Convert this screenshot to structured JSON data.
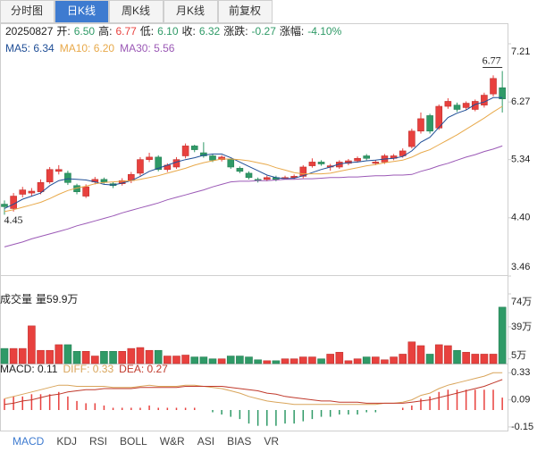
{
  "tabs": [
    "分时图",
    "日K线",
    "周K线",
    "月K线",
    "前复权"
  ],
  "active_tab": 1,
  "info": {
    "date": "20250827",
    "items": [
      {
        "label": "开:",
        "value": "6.50",
        "color": "#2f9a67"
      },
      {
        "label": "高:",
        "value": "6.77",
        "color": "#e8413e"
      },
      {
        "label": "低:",
        "value": "6.10",
        "color": "#2f9a67"
      },
      {
        "label": "收:",
        "value": "6.32",
        "color": "#2f9a67"
      },
      {
        "label": "涨跌:",
        "value": "-0.27",
        "color": "#2f9a67"
      },
      {
        "label": "涨幅:",
        "value": "-4.10%",
        "color": "#2f9a67"
      }
    ]
  },
  "chart_data": [
    {
      "type": "candlestick",
      "up_color": "#e8413e",
      "down_color": "#2f9a67",
      "open": [
        4.62,
        4.55,
        4.78,
        4.8,
        4.82,
        4.98,
        5.15,
        5.12,
        4.92,
        4.75,
        4.98,
        5.02,
        4.95,
        4.95,
        5.0,
        5.12,
        5.34,
        5.38,
        5.18,
        5.22,
        5.4,
        5.56,
        5.45,
        5.4,
        5.34,
        5.34,
        5.2,
        5.12,
        5.02,
        5.02,
        5.05,
        5.05,
        5.05,
        5.07,
        5.24,
        5.3,
        5.22,
        5.22,
        5.28,
        5.32,
        5.4,
        5.28,
        5.3,
        5.36,
        5.4,
        5.55,
        5.8,
        6.05,
        5.85,
        6.2,
        6.22,
        6.18,
        6.15,
        6.22,
        6.4,
        6.5
      ],
      "high": [
        4.68,
        4.8,
        4.9,
        4.88,
        5.02,
        5.22,
        5.25,
        5.16,
        4.95,
        4.94,
        5.06,
        5.05,
        4.98,
        5.04,
        5.14,
        5.38,
        5.45,
        5.41,
        5.28,
        5.38,
        5.6,
        5.58,
        5.62,
        5.43,
        5.41,
        5.36,
        5.23,
        5.15,
        5.05,
        5.08,
        5.08,
        5.08,
        5.1,
        5.25,
        5.36,
        5.33,
        5.27,
        5.33,
        5.35,
        5.39,
        5.43,
        5.33,
        5.43,
        5.43,
        5.52,
        5.84,
        6.1,
        6.08,
        6.23,
        6.33,
        6.26,
        6.28,
        6.31,
        6.42,
        6.7,
        6.77
      ],
      "low": [
        4.45,
        4.5,
        4.73,
        4.75,
        4.78,
        4.95,
        5.1,
        4.93,
        4.78,
        4.72,
        4.94,
        4.95,
        4.88,
        4.92,
        4.96,
        5.08,
        5.3,
        5.15,
        5.14,
        5.19,
        5.36,
        5.46,
        5.37,
        5.3,
        5.31,
        5.19,
        5.12,
        5.02,
        4.97,
        4.99,
        4.99,
        5.02,
        5.02,
        5.04,
        5.21,
        5.24,
        5.16,
        5.19,
        5.25,
        5.29,
        5.33,
        5.25,
        5.27,
        5.33,
        5.37,
        5.52,
        5.76,
        5.76,
        5.82,
        6.16,
        6.11,
        6.14,
        6.12,
        6.18,
        6.36,
        6.1
      ],
      "close": [
        4.58,
        4.75,
        4.85,
        4.83,
        4.97,
        5.18,
        5.18,
        4.97,
        4.82,
        4.9,
        5.02,
        4.98,
        4.92,
        5.0,
        5.1,
        5.34,
        5.38,
        5.18,
        5.25,
        5.34,
        5.56,
        5.5,
        5.4,
        5.33,
        5.38,
        5.22,
        5.15,
        5.05,
        5.0,
        5.05,
        5.02,
        5.05,
        5.07,
        5.22,
        5.3,
        5.27,
        5.24,
        5.3,
        5.32,
        5.36,
        5.36,
        5.3,
        5.4,
        5.4,
        5.48,
        5.8,
        6.0,
        5.8,
        6.2,
        6.28,
        6.15,
        6.25,
        6.28,
        6.38,
        6.65,
        6.32
      ],
      "series": [
        {
          "name": "MA5: 6.34",
          "color": "#1f4e96",
          "values": [
            4.55,
            4.62,
            4.7,
            4.75,
            4.8,
            4.92,
            5.0,
            5.03,
            5.02,
            5.01,
            4.98,
            4.94,
            4.93,
            4.96,
            5.0,
            5.07,
            5.15,
            5.2,
            5.25,
            5.3,
            5.34,
            5.37,
            5.41,
            5.43,
            5.43,
            5.37,
            5.3,
            5.23,
            5.16,
            5.09,
            5.05,
            5.03,
            5.04,
            5.08,
            5.13,
            5.18,
            5.22,
            5.27,
            5.29,
            5.3,
            5.32,
            5.33,
            5.35,
            5.36,
            5.39,
            5.48,
            5.62,
            5.7,
            5.86,
            6.02,
            6.09,
            6.14,
            6.23,
            6.27,
            6.34,
            6.34
          ]
        },
        {
          "name": "MA10: 6.20",
          "color": "#e8a94a",
          "values": [
            4.5,
            4.53,
            4.57,
            4.61,
            4.65,
            4.71,
            4.78,
            4.84,
            4.88,
            4.91,
            4.95,
            4.97,
            4.98,
            4.99,
            5.0,
            5.02,
            5.05,
            5.08,
            5.12,
            5.16,
            5.2,
            5.25,
            5.29,
            5.32,
            5.35,
            5.35,
            5.34,
            5.32,
            5.29,
            5.26,
            5.21,
            5.17,
            5.13,
            5.11,
            5.11,
            5.11,
            5.12,
            5.15,
            5.18,
            5.21,
            5.24,
            5.26,
            5.29,
            5.31,
            5.33,
            5.38,
            5.45,
            5.5,
            5.58,
            5.66,
            5.74,
            5.83,
            5.92,
            6.01,
            6.11,
            6.2
          ]
        },
        {
          "name": "MA30: 5.56",
          "color": "#9b59b6",
          "values": [
            3.93,
            3.97,
            4.01,
            4.06,
            4.1,
            4.14,
            4.18,
            4.22,
            4.27,
            4.31,
            4.35,
            4.39,
            4.43,
            4.48,
            4.52,
            4.56,
            4.6,
            4.64,
            4.69,
            4.73,
            4.77,
            4.81,
            4.85,
            4.9,
            4.94,
            4.98,
            4.99,
            4.99,
            5.0,
            5.0,
            5.01,
            5.02,
            5.02,
            5.03,
            5.03,
            5.04,
            5.05,
            5.05,
            5.06,
            5.06,
            5.07,
            5.08,
            5.08,
            5.09,
            5.09,
            5.1,
            5.15,
            5.19,
            5.24,
            5.28,
            5.33,
            5.38,
            5.42,
            5.47,
            5.51,
            5.56
          ]
        }
      ],
      "annotations": [
        {
          "label": "6.77",
          "value": 6.77
        },
        {
          "label": "4.45",
          "value": 4.45
        }
      ],
      "ylim": [
        3.46,
        7.21
      ],
      "yticks": [
        7.21,
        6.27,
        5.34,
        {
          "value": 4.4,
          "label": "4.40"
        },
        3.46
      ]
    },
    {
      "type": "bar",
      "title": "成交量",
      "subtitle": "量59.9万",
      "values": [
        16,
        16,
        16,
        40,
        14,
        14,
        20,
        20,
        13,
        13,
        8,
        13,
        13,
        13,
        16,
        17,
        14,
        14,
        8,
        8,
        9,
        7,
        7,
        5,
        5,
        8,
        8,
        7,
        4,
        3,
        3,
        5,
        5,
        7,
        7,
        5,
        10,
        12,
        3,
        5,
        7,
        7,
        4,
        7,
        10,
        23,
        19,
        10,
        20,
        19,
        14,
        12,
        10,
        10,
        10,
        59.9
      ],
      "ylim": [
        0,
        74
      ],
      "yticks": [
        {
          "value": 74,
          "label": "74万"
        },
        {
          "value": 39,
          "label": "39万"
        },
        {
          "value": 5,
          "label": "5万"
        }
      ]
    },
    {
      "type": "macd",
      "series": [
        {
          "name": "MACD: 0.11",
          "color": "#222222",
          "up_color": "#e8413e",
          "down_color": "#2f9a67",
          "values": [
            0.1,
            0.12,
            0.12,
            0.14,
            0.14,
            0.14,
            0.16,
            0.12,
            0.08,
            0.06,
            0.06,
            0.04,
            0.02,
            0.02,
            0.02,
            0.02,
            0.04,
            0.02,
            0.02,
            0.02,
            0.02,
            0.02,
            0,
            -0.02,
            -0.04,
            -0.06,
            -0.08,
            -0.12,
            -0.14,
            -0.14,
            -0.14,
            -0.12,
            -0.12,
            -0.1,
            -0.08,
            -0.06,
            -0.06,
            -0.04,
            -0.04,
            -0.04,
            -0.02,
            -0.02,
            0,
            0,
            0.02,
            0.04,
            0.1,
            0.12,
            0.16,
            0.18,
            0.18,
            0.18,
            0.18,
            0.18,
            0.18,
            0.11
          ]
        },
        {
          "name": "DIFF: 0.33",
          "color": "#d9a55b",
          "values": [
            0.1,
            0.12,
            0.14,
            0.16,
            0.18,
            0.2,
            0.22,
            0.22,
            0.21,
            0.21,
            0.21,
            0.21,
            0.2,
            0.2,
            0.2,
            0.21,
            0.22,
            0.21,
            0.21,
            0.21,
            0.22,
            0.22,
            0.21,
            0.2,
            0.19,
            0.17,
            0.15,
            0.12,
            0.1,
            0.08,
            0.07,
            0.06,
            0.05,
            0.05,
            0.05,
            0.05,
            0.05,
            0.05,
            0.05,
            0.05,
            0.05,
            0.05,
            0.06,
            0.06,
            0.07,
            0.09,
            0.13,
            0.15,
            0.19,
            0.22,
            0.24,
            0.26,
            0.28,
            0.3,
            0.33,
            0.33
          ]
        },
        {
          "name": "DEA: 0.27",
          "color": "#c0392b",
          "values": [
            0.05,
            0.06,
            0.08,
            0.09,
            0.11,
            0.13,
            0.14,
            0.16,
            0.17,
            0.18,
            0.18,
            0.19,
            0.19,
            0.19,
            0.19,
            0.2,
            0.2,
            0.2,
            0.2,
            0.2,
            0.21,
            0.21,
            0.21,
            0.21,
            0.21,
            0.2,
            0.19,
            0.18,
            0.17,
            0.15,
            0.14,
            0.12,
            0.11,
            0.1,
            0.09,
            0.08,
            0.08,
            0.07,
            0.07,
            0.07,
            0.06,
            0.06,
            0.06,
            0.06,
            0.06,
            0.07,
            0.08,
            0.09,
            0.11,
            0.13,
            0.15,
            0.17,
            0.19,
            0.21,
            0.24,
            0.27
          ]
        }
      ],
      "ylim": [
        -0.19,
        0.38
      ],
      "yticks": [
        0.33,
        0.09,
        -0.15
      ]
    }
  ],
  "indicator_tabs": [
    "MACD",
    "KDJ",
    "RSI",
    "BOLL",
    "W&R",
    "ASI",
    "BIAS",
    "VR"
  ],
  "active_indicator": 0
}
